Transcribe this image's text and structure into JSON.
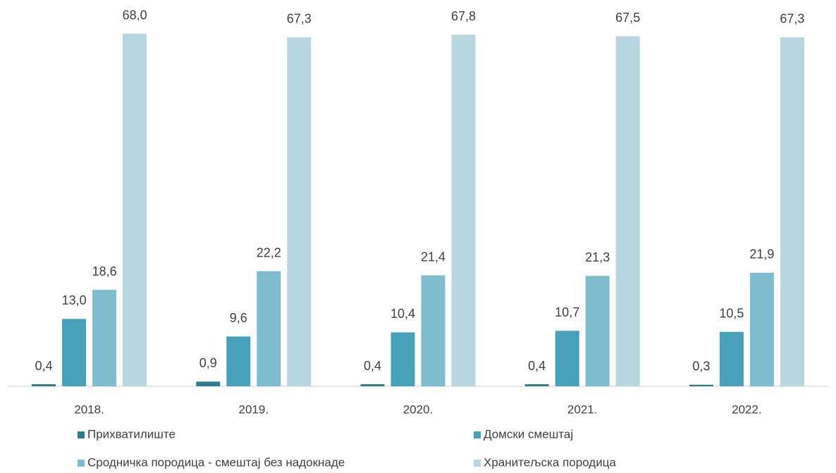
{
  "chart_data": {
    "type": "bar",
    "categories": [
      "2018.",
      "2019.",
      "2020.",
      "2021.",
      "2022."
    ],
    "series": [
      {
        "name": "Прихватилиште",
        "color": "#2e7d8e",
        "values": [
          0.4,
          0.9,
          0.4,
          0.4,
          0.3
        ],
        "value_labels": [
          "0,4",
          "0,9",
          "0,4",
          "0,4",
          "0,3"
        ]
      },
      {
        "name": "Домски смештај",
        "color": "#46a1b9",
        "values": [
          13.0,
          9.6,
          10.4,
          10.7,
          10.5
        ],
        "value_labels": [
          "13,0",
          "9,6",
          "10,4",
          "10,7",
          "10,5"
        ]
      },
      {
        "name": "Сродничка породица -  смештај без надокнаде",
        "color": "#80bcd0",
        "values": [
          18.6,
          22.2,
          21.4,
          21.3,
          21.9
        ],
        "value_labels": [
          "18,6",
          "22,2",
          "21,4",
          "21,3",
          "21,9"
        ]
      },
      {
        "name": "Хранитељска породица",
        "color": "#b7d6e0",
        "values": [
          68.0,
          67.3,
          67.8,
          67.5,
          67.3
        ],
        "value_labels": [
          "68,0",
          "67,3",
          "67,8",
          "67,5",
          "67,3"
        ]
      }
    ],
    "ylim": [
      0,
      70
    ],
    "legend": "bottom"
  }
}
